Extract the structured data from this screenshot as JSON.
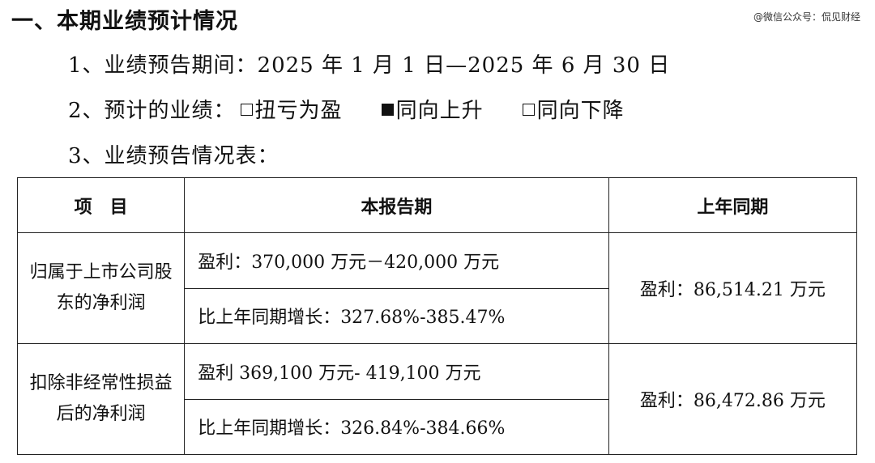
{
  "heading": "一、本期业绩预计情况",
  "watermark": "@微信公众号：侃见财经",
  "line1": "1、业绩预告期间：2025 年 1 月 1 日—2025 年 6 月 30 日",
  "line2": {
    "prefix": "2、预计的业绩：",
    "options": [
      {
        "label": "扭亏为盈",
        "checked": false
      },
      {
        "label": "同向上升",
        "checked": true
      },
      {
        "label": "同向下降",
        "checked": false
      }
    ]
  },
  "line3": "3、业绩预告情况表：",
  "table": {
    "headers": [
      "项　目",
      "本报告期",
      "上年同期"
    ],
    "rows": [
      {
        "item": "归属于上市公司股东的净利润",
        "current": [
          "盈利：370,000 万元－420,000 万元",
          "比上年同期增长：327.68%-385.47%"
        ],
        "previous": "盈利：86,514.21 万元"
      },
      {
        "item": "扣除非经常性损益后的净利润",
        "current": [
          "盈利 369,100 万元- 419,100 万元",
          "比上年同期增长：326.84%-384.66%"
        ],
        "previous": "盈利：86,472.86 万元"
      }
    ]
  }
}
